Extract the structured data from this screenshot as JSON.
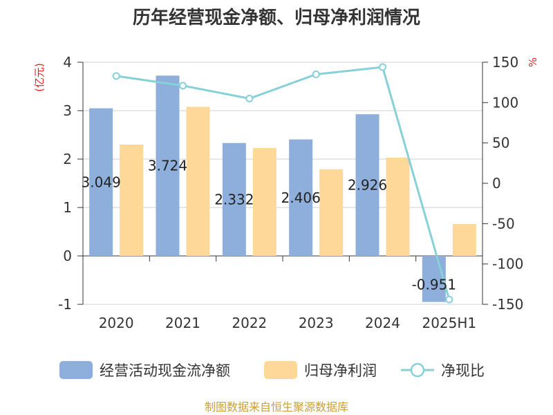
{
  "chart_data": {
    "type": "bar",
    "title": "历年经营现金净额、归母净利润情况",
    "y_left_unit": "(亿元)",
    "y_right_unit": "%",
    "categories": [
      "2020",
      "2021",
      "2022",
      "2023",
      "2024",
      "2025H1"
    ],
    "series": [
      {
        "name": "经营活动现金流净额",
        "type": "bar",
        "axis": "left",
        "color": "#8eaedb",
        "values": [
          3.049,
          3.724,
          2.332,
          2.406,
          2.926,
          -0.951
        ],
        "labels": [
          "3.049",
          "3.724",
          "2.332",
          "2.406",
          "2.926",
          "-0.951"
        ]
      },
      {
        "name": "归母净利润",
        "type": "bar",
        "axis": "left",
        "color": "#fdd899",
        "values": [
          2.3,
          3.08,
          2.23,
          1.79,
          2.03,
          0.66
        ]
      },
      {
        "name": "净现比",
        "type": "line",
        "axis": "right",
        "color": "#86d0d8",
        "values": [
          133,
          121,
          105,
          135,
          144,
          -144
        ]
      }
    ],
    "y_left": {
      "min": -1,
      "max": 4,
      "ticks": [
        "-1",
        "0",
        "1",
        "2",
        "3",
        "4"
      ]
    },
    "y_right": {
      "min": -150,
      "max": 150,
      "ticks": [
        "-150",
        "-100",
        "-50",
        "0",
        "50",
        "100",
        "150"
      ]
    },
    "grid": true,
    "legend_position": "bottom"
  },
  "source": "制图数据来自恒生聚源数据库"
}
